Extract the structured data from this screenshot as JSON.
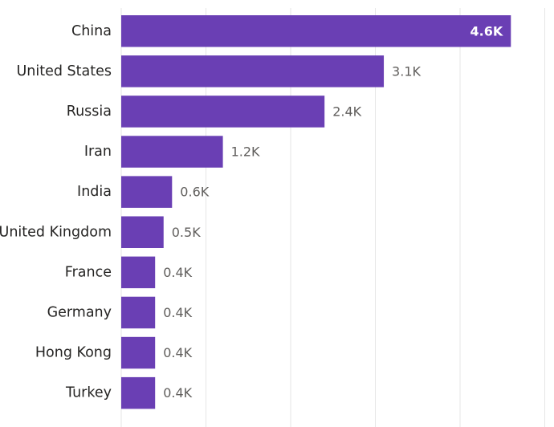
{
  "chart_data": {
    "type": "bar",
    "orientation": "horizontal",
    "categories": [
      "China",
      "United States",
      "Russia",
      "Iran",
      "India",
      "United Kingdom",
      "France",
      "Germany",
      "Hong Kong",
      "Turkey"
    ],
    "values": [
      4.6,
      3.1,
      2.4,
      1.2,
      0.6,
      0.5,
      0.4,
      0.4,
      0.4,
      0.4
    ],
    "value_labels": [
      "4.6K",
      "3.1K",
      "2.4K",
      "1.2K",
      "0.6K",
      "0.5K",
      "0.4K",
      "0.4K",
      "0.4K",
      "0.4K"
    ],
    "value_unit": "K",
    "xlim": [
      0,
      5
    ],
    "grid": "vertical",
    "title": "",
    "xlabel": "",
    "ylabel": "",
    "colors": {
      "bar": "#6a3fb4",
      "gridline": "#e6e6e6",
      "label": "#252423",
      "value_label": "#605e5c"
    }
  }
}
